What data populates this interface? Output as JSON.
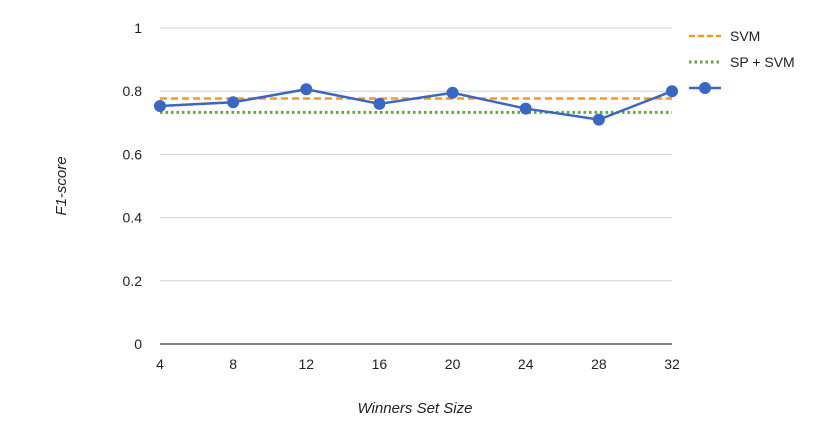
{
  "chart_data": {
    "type": "line",
    "title": "",
    "xlabel": "Winners Set Size",
    "ylabel": "F1-score",
    "x": [
      4,
      8,
      12,
      16,
      20,
      24,
      28,
      32
    ],
    "xlim": [
      4,
      32
    ],
    "ylim": [
      0,
      1
    ],
    "yticks": [
      0,
      0.2,
      0.4,
      0.6,
      0.8,
      1
    ],
    "grid": true,
    "legend_position": "top-right",
    "series": [
      {
        "name": "SVM",
        "style": "dashed",
        "color": "#f29b1f",
        "values": [
          0.777,
          0.777,
          0.777,
          0.777,
          0.777,
          0.777,
          0.777,
          0.777
        ]
      },
      {
        "name": "SP + SVM",
        "style": "dotted",
        "color": "#5fa641",
        "values": [
          0.733,
          0.733,
          0.733,
          0.733,
          0.733,
          0.733,
          0.733,
          0.733
        ]
      },
      {
        "name": "",
        "style": "solid-markers",
        "color": "#3a66c4",
        "values": [
          0.753,
          0.765,
          0.806,
          0.76,
          0.795,
          0.745,
          0.71,
          0.8
        ]
      }
    ]
  }
}
